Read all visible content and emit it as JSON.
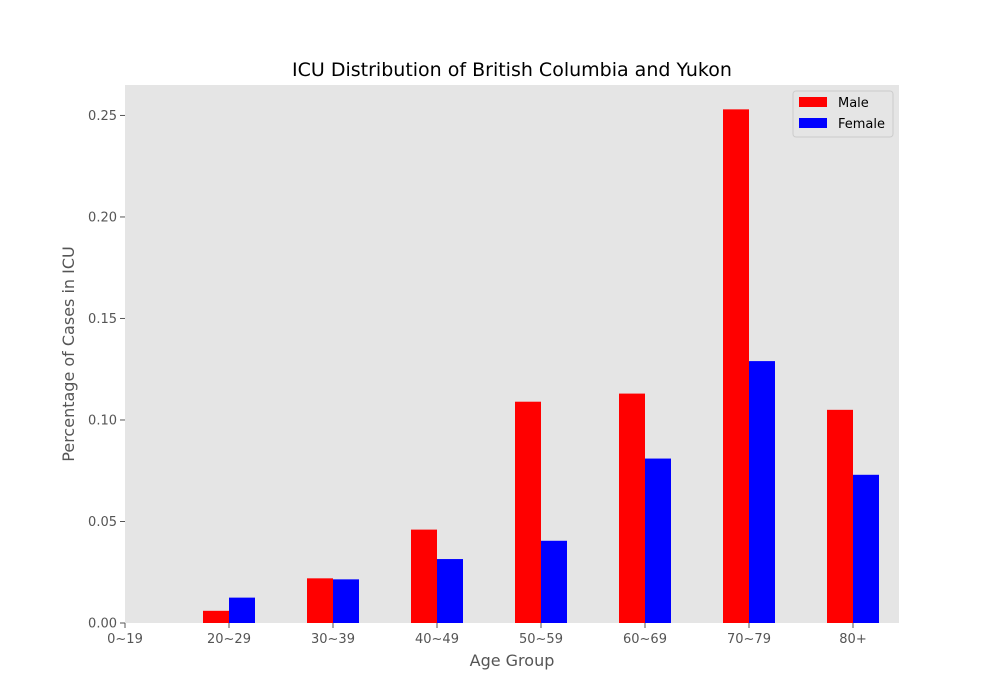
{
  "chart_data": {
    "type": "bar",
    "title": "ICU Distribution of British Columbia and Yukon",
    "xlabel": "Age Group",
    "ylabel": "Percentage of Cases in ICU",
    "categories": [
      "0~19",
      "20~29",
      "30~39",
      "40~49",
      "50~59",
      "60~69",
      "70~79",
      "80+"
    ],
    "series": [
      {
        "name": "Male",
        "color": "#ff0000",
        "values": [
          0.0,
          0.006,
          0.022,
          0.046,
          0.109,
          0.113,
          0.253,
          0.105
        ]
      },
      {
        "name": "Female",
        "color": "#0000ff",
        "values": [
          0.0,
          0.0125,
          0.0215,
          0.0315,
          0.0405,
          0.081,
          0.129,
          0.073
        ]
      }
    ],
    "ylim": [
      0,
      0.265
    ],
    "yticks": [
      "0.00",
      "0.05",
      "0.10",
      "0.15",
      "0.20",
      "0.25"
    ],
    "ytick_values": [
      0,
      0.05,
      0.1,
      0.15,
      0.2,
      0.25
    ],
    "grid": false,
    "legend_position": "top-right",
    "background": "#e5e5e5"
  }
}
